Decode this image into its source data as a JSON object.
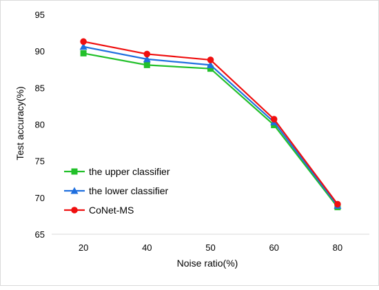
{
  "chart_data": {
    "type": "line",
    "title": "",
    "xlabel": "Noise ratio(%)",
    "ylabel": "Test accuracy(%)",
    "categories": [
      "20",
      "40",
      "50",
      "60",
      "80"
    ],
    "ylim": [
      65,
      95
    ],
    "yticks": [
      "65",
      "70",
      "75",
      "80",
      "85",
      "90",
      "95"
    ],
    "grid": "off",
    "legend_position": "lower-left",
    "series": [
      {
        "name": "the upper classifier",
        "color": "#22c02a",
        "marker": "square",
        "values": [
          89.7,
          88.1,
          87.6,
          79.9,
          68.7
        ]
      },
      {
        "name": "the lower classifier",
        "color": "#1f6fde",
        "marker": "triangle",
        "values": [
          90.6,
          88.9,
          88.1,
          80.3,
          68.9
        ]
      },
      {
        "name": "CoNet-MS",
        "color": "#ef0f0f",
        "marker": "circle",
        "values": [
          91.3,
          89.6,
          88.8,
          80.7,
          69.1
        ]
      }
    ]
  }
}
